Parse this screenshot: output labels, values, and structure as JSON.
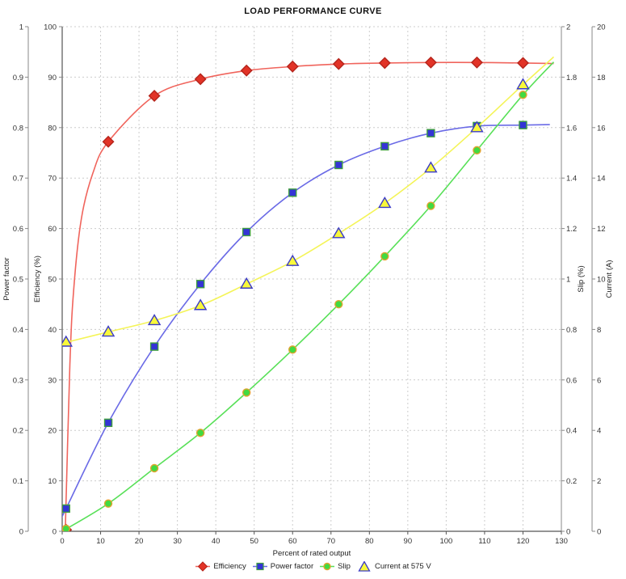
{
  "title": "LOAD PERFORMANCE CURVE",
  "chart_data": {
    "type": "line",
    "x": [
      1,
      12,
      24,
      36,
      48,
      60,
      72,
      84,
      96,
      108,
      120
    ],
    "xlabel": "Percent of rated output",
    "xlim": [
      0,
      130
    ],
    "x_ticks": [
      0,
      10,
      20,
      30,
      40,
      50,
      60,
      70,
      80,
      90,
      100,
      110,
      120,
      130
    ],
    "grid": true,
    "legend_position": "bottom",
    "axes": {
      "power_factor": {
        "label": "Power factor",
        "side": "left-outer",
        "lim": [
          0,
          1
        ],
        "ticks": [
          0,
          0.1,
          0.2,
          0.3,
          0.4,
          0.5,
          0.6,
          0.7,
          0.8,
          0.9,
          1
        ]
      },
      "efficiency": {
        "label": "Efficiency (%)",
        "side": "left-inner",
        "lim": [
          0,
          100
        ],
        "ticks": [
          0,
          10,
          20,
          30,
          40,
          50,
          60,
          70,
          80,
          90,
          100
        ]
      },
      "slip": {
        "label": "Slip (%)",
        "side": "right-inner",
        "lim": [
          0,
          2
        ],
        "ticks": [
          0,
          0.2,
          0.4,
          0.6,
          0.8,
          1,
          1.2,
          1.4,
          1.6,
          1.8,
          2
        ]
      },
      "current": {
        "label": "Current (A)",
        "side": "right-outer",
        "lim": [
          0,
          20
        ],
        "ticks": [
          0,
          2,
          4,
          6,
          8,
          10,
          12,
          14,
          16,
          18,
          20
        ]
      }
    },
    "series": [
      {
        "name": "Efficiency",
        "axis": "efficiency",
        "marker": "diamond",
        "marker_fill": "#e23327",
        "marker_stroke": "#b5241b",
        "line_color": "#f0645c",
        "values": [
          0.3,
          77.2,
          86.3,
          89.6,
          91.3,
          92.1,
          92.6,
          92.8,
          92.9,
          92.9,
          92.8
        ],
        "shape_points": [
          [
            0.8,
            0
          ],
          [
            2,
            33
          ],
          [
            3,
            48
          ],
          [
            5,
            62
          ],
          [
            8,
            71
          ],
          [
            12,
            77.2
          ],
          [
            24,
            86.3
          ],
          [
            36,
            89.6
          ],
          [
            48,
            91.3
          ],
          [
            60,
            92.1
          ],
          [
            72,
            92.6
          ],
          [
            84,
            92.8
          ],
          [
            96,
            92.9
          ],
          [
            108,
            92.9
          ],
          [
            120,
            92.8
          ],
          [
            128,
            92.7
          ]
        ]
      },
      {
        "name": "Power factor",
        "axis": "power_factor",
        "marker": "square",
        "marker_fill": "#3434d6",
        "marker_stroke": "#3f9e3f",
        "line_color": "#6a6ae6",
        "values": [
          0.045,
          0.215,
          0.366,
          0.49,
          0.593,
          0.671,
          0.726,
          0.763,
          0.789,
          0.803,
          0.805
        ],
        "shape_points": [
          [
            0,
            0.03
          ],
          [
            1,
            0.045
          ],
          [
            12,
            0.215
          ],
          [
            24,
            0.366
          ],
          [
            36,
            0.49
          ],
          [
            48,
            0.593
          ],
          [
            60,
            0.671
          ],
          [
            72,
            0.726
          ],
          [
            84,
            0.763
          ],
          [
            96,
            0.789
          ],
          [
            108,
            0.803
          ],
          [
            120,
            0.805
          ],
          [
            127,
            0.806
          ]
        ]
      },
      {
        "name": "Slip",
        "axis": "slip",
        "marker": "circle",
        "marker_fill": "#41da41",
        "marker_stroke": "#e2a32e",
        "line_color": "#58e058",
        "values": [
          0.01,
          0.11,
          0.25,
          0.39,
          0.55,
          0.72,
          0.9,
          1.09,
          1.29,
          1.51,
          1.73
        ],
        "shape_points": [
          [
            0,
            0
          ],
          [
            12,
            0.11
          ],
          [
            24,
            0.25
          ],
          [
            36,
            0.39
          ],
          [
            48,
            0.55
          ],
          [
            60,
            0.72
          ],
          [
            72,
            0.9
          ],
          [
            84,
            1.09
          ],
          [
            96,
            1.29
          ],
          [
            108,
            1.51
          ],
          [
            120,
            1.73
          ],
          [
            128,
            1.86
          ]
        ]
      },
      {
        "name": "Current at 575 V",
        "axis": "current",
        "marker": "triangle",
        "marker_fill": "#f8f83a",
        "marker_stroke": "#3b3bc6",
        "line_color": "#f4f458",
        "values": [
          7.5,
          7.9,
          8.35,
          8.95,
          9.8,
          10.7,
          11.8,
          13.0,
          14.4,
          16.0,
          17.7
        ],
        "shape_points": [
          [
            0,
            7.45
          ],
          [
            12,
            7.9
          ],
          [
            24,
            8.35
          ],
          [
            36,
            8.95
          ],
          [
            48,
            9.8
          ],
          [
            60,
            10.7
          ],
          [
            72,
            11.8
          ],
          [
            84,
            13.0
          ],
          [
            96,
            14.4
          ],
          [
            108,
            16.0
          ],
          [
            120,
            17.7
          ],
          [
            128,
            18.8
          ]
        ]
      }
    ]
  }
}
